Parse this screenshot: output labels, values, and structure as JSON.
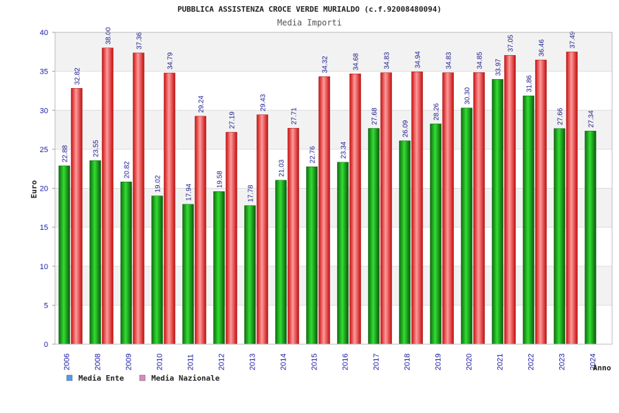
{
  "chart_data": {
    "type": "bar",
    "title": "PUBBLICA ASSISTENZA CROCE VERDE MURIALDO (c.f.92008480094)",
    "subtitle": "Media Importi",
    "xlabel": "Anno",
    "ylabel": "Euro",
    "ylim": [
      0,
      40
    ],
    "yticks": [
      0,
      5,
      10,
      15,
      20,
      25,
      30,
      35,
      40
    ],
    "grid": true,
    "legend_position": "bottom-left",
    "categories": [
      "2006",
      "2008",
      "2009",
      "2010",
      "2011",
      "2012",
      "2013",
      "2014",
      "2015",
      "2016",
      "2017",
      "2018",
      "2019",
      "2020",
      "2021",
      "2022",
      "2023",
      "2024"
    ],
    "series": [
      {
        "name": "Media Ente",
        "color": "#22aa22",
        "legend_color": "#5599ee",
        "values": [
          22.88,
          23.55,
          20.82,
          19.02,
          17.94,
          19.58,
          17.78,
          21.03,
          22.76,
          23.34,
          27.68,
          26.09,
          28.26,
          30.3,
          33.97,
          31.86,
          27.66,
          27.34
        ],
        "labels": [
          "22.88",
          "23.55",
          "20.82",
          "19.02",
          "17.94",
          "19.58",
          "17.78",
          "21.03",
          "22.76",
          "23.34",
          "27.68",
          "26.09",
          "28.26",
          "30.30",
          "33.97",
          "31.86",
          "27.66",
          "27.34"
        ]
      },
      {
        "name": "Media Nazionale",
        "color": "#ee2222",
        "legend_color": "#dd88bb",
        "values": [
          32.82,
          38.0,
          37.36,
          34.79,
          29.24,
          27.19,
          29.43,
          27.71,
          34.32,
          34.68,
          34.83,
          34.94,
          34.83,
          34.85,
          37.05,
          36.46,
          37.49,
          null
        ],
        "labels": [
          "32.82",
          "38.00",
          "37.36",
          "34.79",
          "29.24",
          "27.19",
          "29.43",
          "27.71",
          "34.32",
          "34.68",
          "34.83",
          "34.94",
          "34.83",
          "34.85",
          "37.05",
          "36.46",
          "37.49",
          ""
        ]
      }
    ]
  }
}
